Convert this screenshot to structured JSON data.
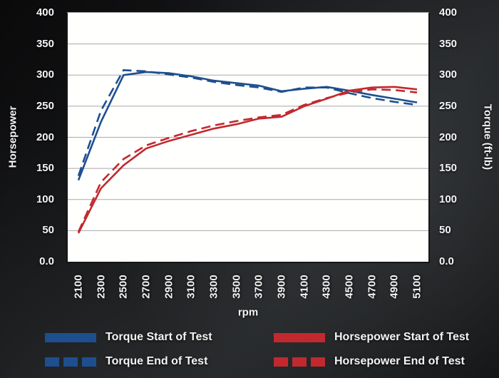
{
  "axes": {
    "left_title": "Horsepower",
    "right_title": "Torque (ft-lb)",
    "x_title": "rpm",
    "y_tick_labels": [
      "400",
      "350",
      "300",
      "250",
      "200",
      "150",
      "100",
      "50",
      "0.0"
    ],
    "y_tick_values": [
      400,
      350,
      300,
      250,
      200,
      150,
      100,
      50,
      0
    ],
    "x_tick_labels": [
      "2100",
      "2300",
      "2500",
      "2700",
      "2900",
      "3100",
      "3300",
      "3500",
      "3700",
      "3900",
      "4100",
      "4300",
      "4500",
      "4700",
      "4900",
      "5100"
    ]
  },
  "colors": {
    "torque_blue": "#1d4f8f",
    "horsepower_red": "#c2292e",
    "grid": "#a8a8a8",
    "plot_background": "#ffffff",
    "text": "#f4f4f4"
  },
  "chart_data": {
    "type": "line",
    "title": "",
    "xlabel": "rpm",
    "ylabel_left": "Horsepower",
    "ylabel_right": "Torque (ft-lb)",
    "x": [
      2100,
      2300,
      2500,
      2700,
      2900,
      3100,
      3300,
      3500,
      3700,
      3900,
      4100,
      4300,
      4500,
      4700,
      4900,
      5100
    ],
    "ylim": [
      0,
      400
    ],
    "y_tick_step": 50,
    "grid": "horizontal",
    "legend_position": "bottom",
    "series": [
      {
        "name": "Torque Start of Test",
        "color": "#1d4f8f",
        "dash": "solid",
        "values": [
          131,
          225,
          300,
          305,
          303,
          298,
          291,
          287,
          283,
          274,
          278,
          281,
          275,
          268,
          262,
          256
        ]
      },
      {
        "name": "Torque End of Test",
        "color": "#1d4f8f",
        "dash": "dashed",
        "values": [
          138,
          243,
          308,
          306,
          301,
          296,
          289,
          284,
          280,
          273,
          280,
          280,
          271,
          263,
          257,
          252
        ]
      },
      {
        "name": "Horsepower Start of Test",
        "color": "#c2292e",
        "dash": "solid",
        "values": [
          46,
          118,
          155,
          182,
          194,
          204,
          214,
          221,
          230,
          233,
          250,
          262,
          275,
          280,
          281,
          277
        ]
      },
      {
        "name": "Horsepower End of Test",
        "color": "#c2292e",
        "dash": "dashed",
        "values": [
          48,
          128,
          165,
          187,
          199,
          210,
          219,
          226,
          232,
          236,
          252,
          263,
          272,
          277,
          276,
          272
        ]
      }
    ]
  }
}
